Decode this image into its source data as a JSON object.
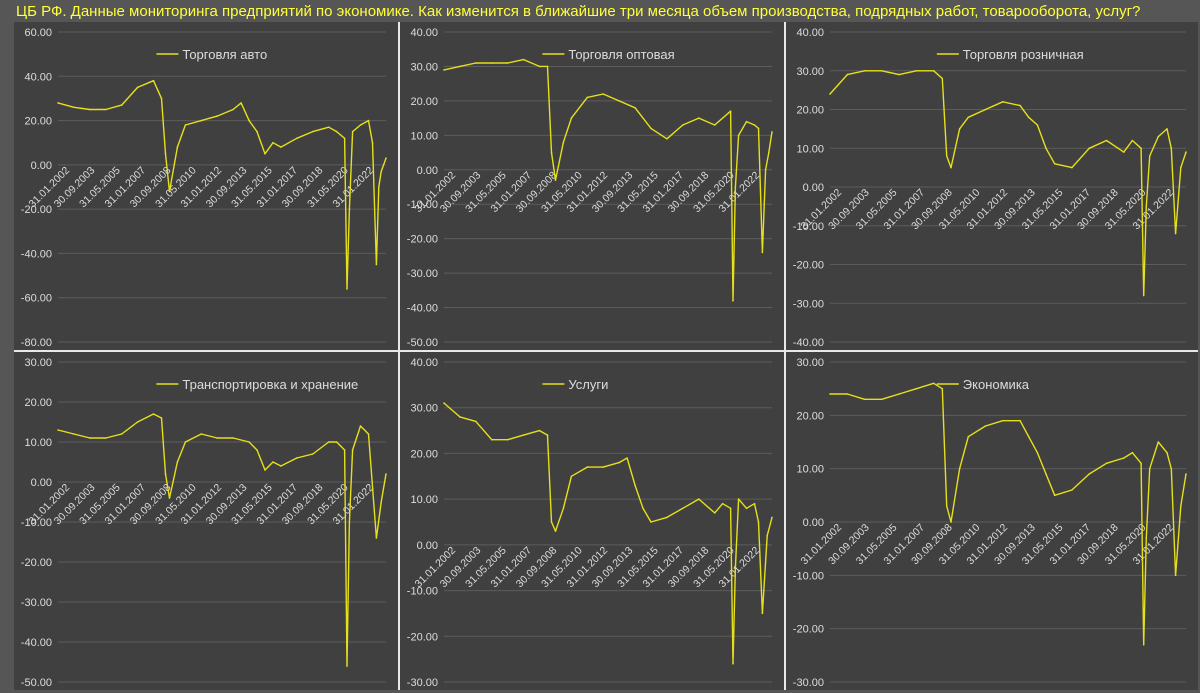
{
  "title": "ЦБ РФ. Данные мониторинга предприятий по экономике. Как изменится в ближайшие три месяца объем производства, подрядных работ, товарооборота, услуг?",
  "colors": {
    "line": "#e6e01a",
    "text": "#dcdcdc",
    "title": "#ffff3a",
    "grid": "#5c5c5c",
    "panel": "#404040"
  },
  "chart_data": [
    {
      "type": "line",
      "series_name": "Торговля авто",
      "yticks": [
        "60.00",
        "40.00",
        "20.00",
        "0.00",
        "-20.00",
        "-40.00",
        "-60.00",
        "-80.00"
      ],
      "ylim": [
        -80,
        60
      ],
      "xticks": [
        "31.01.2002",
        "30.09.2003",
        "31.05.2005",
        "31.01.2007",
        "30.09.2008",
        "31.05.2010",
        "31.01.2012",
        "30.09.2013",
        "31.05.2015",
        "31.01.2017",
        "30.09.2018",
        "31.05.2020",
        "31.01.2022"
      ],
      "x": [
        2002.0,
        2003.0,
        2004.0,
        2005.0,
        2006.0,
        2007.0,
        2008.0,
        2008.5,
        2008.75,
        2009.0,
        2009.5,
        2010.0,
        2011.0,
        2012.0,
        2013.0,
        2013.5,
        2014.0,
        2014.5,
        2015.0,
        2015.5,
        2016.0,
        2017.0,
        2018.0,
        2019.0,
        2019.5,
        2020.0,
        2020.15,
        2020.3,
        2020.5,
        2021.0,
        2021.5,
        2021.75,
        2022.0,
        2022.15,
        2022.3,
        2022.6
      ],
      "y": [
        28,
        26,
        25,
        25,
        27,
        35,
        38,
        30,
        5,
        -12,
        8,
        18,
        20,
        22,
        25,
        28,
        20,
        15,
        5,
        10,
        8,
        12,
        15,
        17,
        15,
        12,
        -56,
        -20,
        15,
        18,
        20,
        10,
        -45,
        -10,
        -3,
        3
      ]
    },
    {
      "type": "line",
      "series_name": "Торговля оптовая",
      "yticks": [
        "40.00",
        "30.00",
        "20.00",
        "10.00",
        "0.00",
        "-10.00",
        "-20.00",
        "-30.00",
        "-40.00",
        "-50.00"
      ],
      "ylim": [
        -50,
        40
      ],
      "xticks": [
        "31.01.2002",
        "30.09.2003",
        "31.05.2005",
        "31.01.2007",
        "30.09.2008",
        "31.05.2010",
        "31.01.2012",
        "30.09.2013",
        "31.05.2015",
        "31.01.2017",
        "30.09.2018",
        "31.05.2020",
        "31.01.2022"
      ],
      "x": [
        2002.0,
        2003.0,
        2004.0,
        2005.0,
        2006.0,
        2007.0,
        2008.0,
        2008.5,
        2008.75,
        2009.0,
        2009.5,
        2010.0,
        2011.0,
        2012.0,
        2013.0,
        2014.0,
        2015.0,
        2016.0,
        2017.0,
        2018.0,
        2019.0,
        2020.0,
        2020.15,
        2020.3,
        2020.5,
        2021.0,
        2021.5,
        2021.75,
        2022.0,
        2022.2,
        2022.4,
        2022.6
      ],
      "y": [
        29,
        30,
        31,
        31,
        31,
        32,
        30,
        30,
        5,
        -3,
        8,
        15,
        21,
        22,
        20,
        18,
        12,
        9,
        13,
        15,
        13,
        17,
        -38,
        -5,
        10,
        14,
        13,
        12,
        -24,
        0,
        5,
        11
      ]
    },
    {
      "type": "line",
      "series_name": "Торговля розничная",
      "yticks": [
        "40.00",
        "30.00",
        "20.00",
        "10.00",
        "0.00",
        "-10.00",
        "-20.00",
        "-30.00",
        "-40.00"
      ],
      "ylim": [
        -40,
        40
      ],
      "xticks": [
        "31.01.2002",
        "30.09.2003",
        "31.05.2005",
        "31.01.2007",
        "30.09.2008",
        "31.05.2010",
        "31.01.2012",
        "30.09.2013",
        "31.05.2015",
        "31.01.2017",
        "30.09.2018",
        "31.05.2020",
        "31.01.2022"
      ],
      "x": [
        2002.0,
        2003.0,
        2004.0,
        2005.0,
        2006.0,
        2007.0,
        2008.0,
        2008.5,
        2008.75,
        2009.0,
        2009.5,
        2010.0,
        2011.0,
        2012.0,
        2013.0,
        2013.5,
        2014.0,
        2014.5,
        2015.0,
        2016.0,
        2017.0,
        2018.0,
        2019.0,
        2019.5,
        2020.0,
        2020.15,
        2020.3,
        2020.5,
        2021.0,
        2021.5,
        2021.75,
        2022.0,
        2022.3,
        2022.6
      ],
      "y": [
        24,
        29,
        30,
        30,
        29,
        30,
        30,
        28,
        8,
        5,
        15,
        18,
        20,
        22,
        21,
        18,
        16,
        10,
        6,
        5,
        10,
        12,
        9,
        12,
        10,
        -28,
        -5,
        8,
        13,
        15,
        10,
        -12,
        5,
        9
      ]
    },
    {
      "type": "line",
      "series_name": "Транспортировка и хранение",
      "yticks": [
        "30.00",
        "20.00",
        "10.00",
        "0.00",
        "-10.00",
        "-20.00",
        "-30.00",
        "-40.00",
        "-50.00"
      ],
      "ylim": [
        -50,
        30
      ],
      "xticks": [
        "31.01.2002",
        "30.09.2003",
        "31.05.2005",
        "31.01.2007",
        "30.09.2008",
        "31.05.2010",
        "31.01.2012",
        "30.09.2013",
        "31.05.2015",
        "31.01.2017",
        "30.09.2018",
        "31.05.2020",
        "31.01.2022"
      ],
      "x": [
        2002.0,
        2003.0,
        2004.0,
        2005.0,
        2006.0,
        2007.0,
        2008.0,
        2008.5,
        2008.75,
        2009.0,
        2009.5,
        2010.0,
        2011.0,
        2012.0,
        2013.0,
        2014.0,
        2014.5,
        2015.0,
        2015.5,
        2016.0,
        2017.0,
        2018.0,
        2019.0,
        2019.5,
        2020.0,
        2020.15,
        2020.3,
        2020.5,
        2021.0,
        2021.5,
        2022.0,
        2022.3,
        2022.6
      ],
      "y": [
        13,
        12,
        11,
        11,
        12,
        15,
        17,
        16,
        2,
        -4,
        5,
        10,
        12,
        11,
        11,
        10,
        8,
        3,
        5,
        4,
        6,
        7,
        10,
        10,
        8,
        -46,
        -10,
        8,
        14,
        12,
        -14,
        -5,
        2
      ]
    },
    {
      "type": "line",
      "series_name": "Услуги",
      "yticks": [
        "40.00",
        "30.00",
        "20.00",
        "10.00",
        "0.00",
        "-10.00",
        "-20.00",
        "-30.00"
      ],
      "ylim": [
        -30,
        40
      ],
      "xticks": [
        "31.01.2002",
        "30.09.2003",
        "31.05.2005",
        "31.01.2007",
        "30.09.2008",
        "31.05.2010",
        "31.01.2012",
        "30.09.2013",
        "31.05.2015",
        "31.01.2017",
        "30.09.2018",
        "31.05.2020",
        "31.01.2022"
      ],
      "x": [
        2002.0,
        2003.0,
        2004.0,
        2005.0,
        2006.0,
        2007.0,
        2008.0,
        2008.5,
        2008.75,
        2009.0,
        2009.5,
        2010.0,
        2011.0,
        2012.0,
        2013.0,
        2013.5,
        2014.0,
        2014.5,
        2015.0,
        2016.0,
        2017.0,
        2018.0,
        2019.0,
        2019.5,
        2020.0,
        2020.15,
        2020.3,
        2020.5,
        2021.0,
        2021.5,
        2021.75,
        2022.0,
        2022.3,
        2022.6
      ],
      "y": [
        31,
        28,
        27,
        23,
        23,
        24,
        25,
        24,
        5,
        3,
        8,
        15,
        17,
        17,
        18,
        19,
        13,
        8,
        5,
        6,
        8,
        10,
        7,
        9,
        8,
        -26,
        -5,
        10,
        8,
        9,
        5,
        -15,
        2,
        6
      ]
    },
    {
      "type": "line",
      "series_name": "Экономика",
      "yticks": [
        "30.00",
        "20.00",
        "10.00",
        "0.00",
        "-10.00",
        "-20.00",
        "-30.00"
      ],
      "ylim": [
        -30,
        30
      ],
      "xticks": [
        "31.01.2002",
        "30.09.2003",
        "31.05.2005",
        "31.01.2007",
        "30.09.2008",
        "31.05.2010",
        "31.01.2012",
        "30.09.2013",
        "31.05.2015",
        "31.01.2017",
        "30.09.2018",
        "31.05.2020",
        "31.01.2022"
      ],
      "x": [
        2002.0,
        2003.0,
        2004.0,
        2005.0,
        2006.0,
        2007.0,
        2008.0,
        2008.5,
        2008.75,
        2009.0,
        2009.5,
        2010.0,
        2011.0,
        2012.0,
        2013.0,
        2013.5,
        2014.0,
        2014.5,
        2015.0,
        2016.0,
        2017.0,
        2018.0,
        2019.0,
        2019.5,
        2020.0,
        2020.15,
        2020.3,
        2020.5,
        2021.0,
        2021.5,
        2021.75,
        2022.0,
        2022.3,
        2022.6
      ],
      "y": [
        24,
        24,
        23,
        23,
        24,
        25,
        26,
        25,
        3,
        0,
        10,
        16,
        18,
        19,
        19,
        16,
        13,
        9,
        5,
        6,
        9,
        11,
        12,
        13,
        11,
        -23,
        -3,
        10,
        15,
        13,
        10,
        -10,
        3,
        9
      ]
    }
  ]
}
